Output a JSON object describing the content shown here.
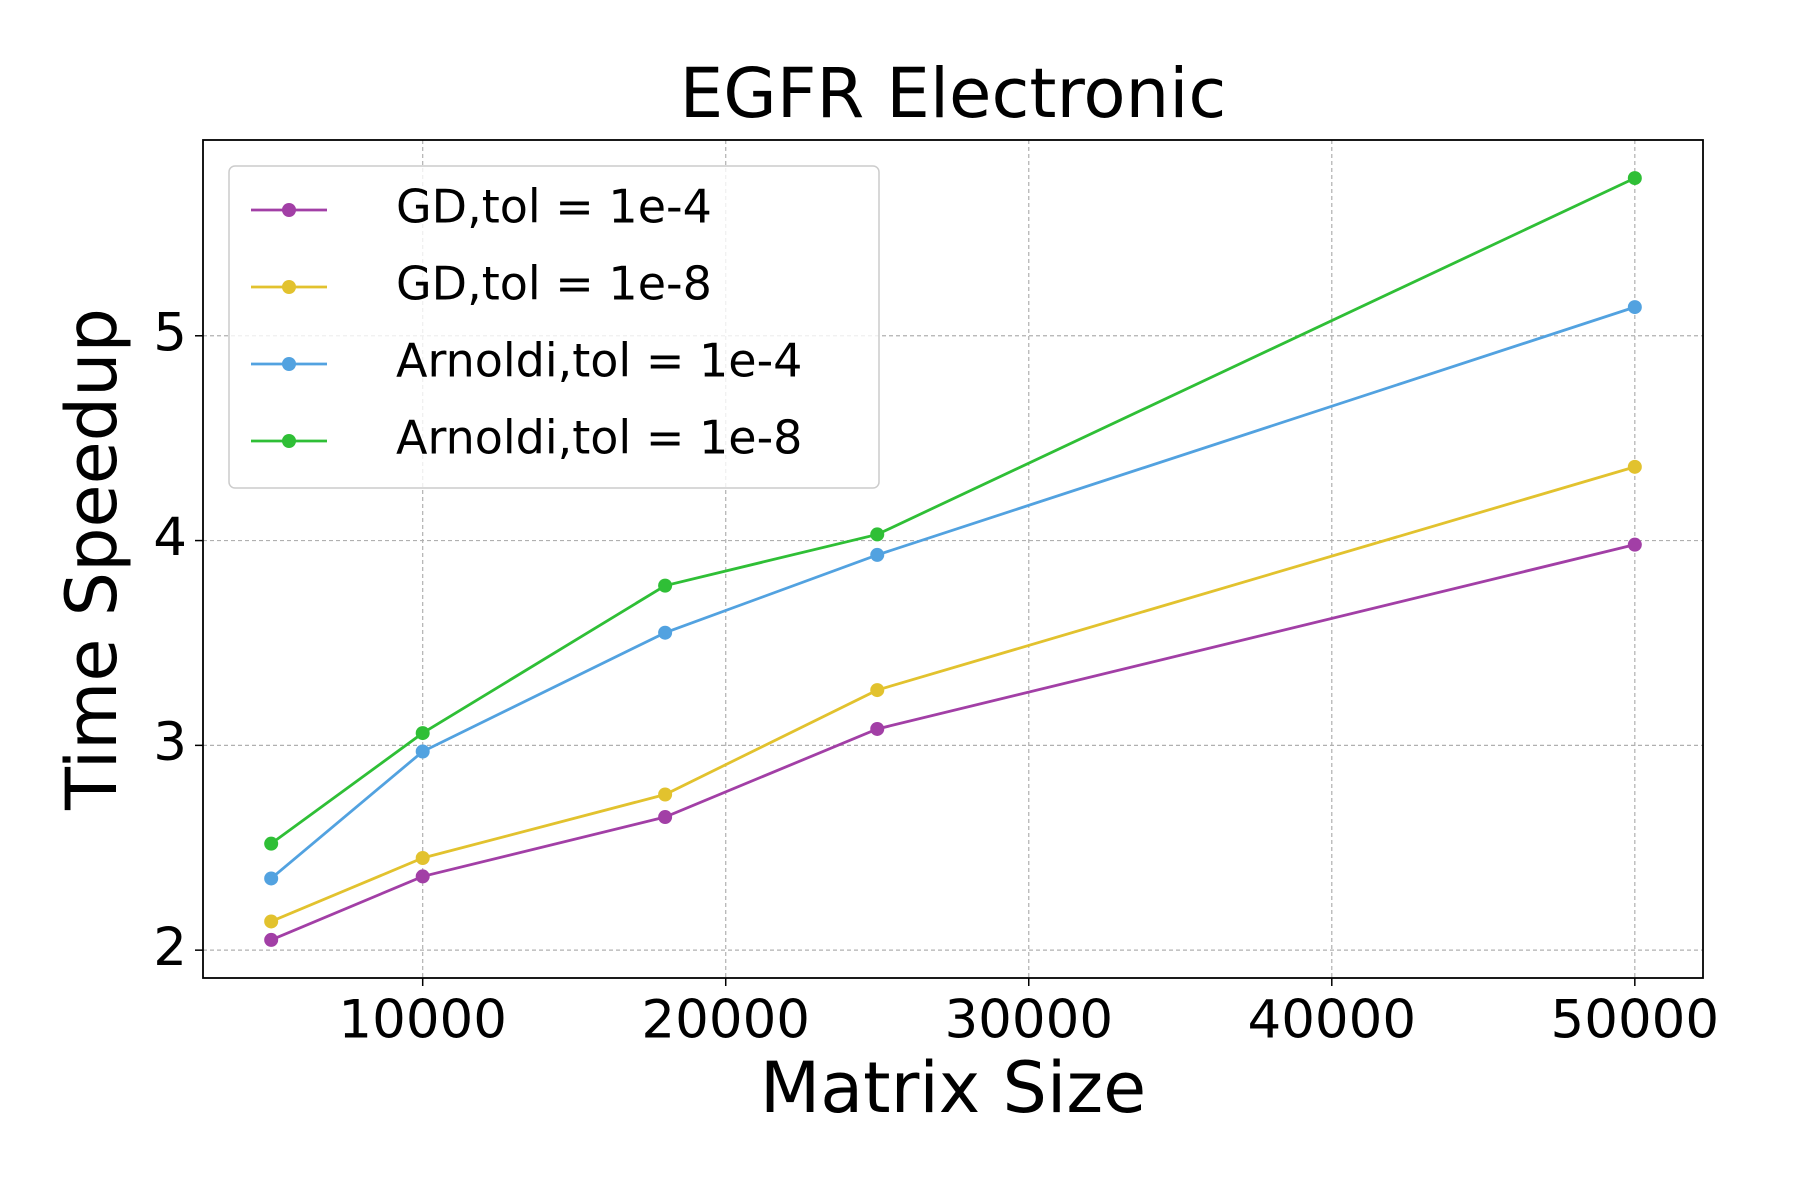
{
  "chart_data": {
    "type": "line",
    "title": "EGFR Electronic",
    "x_label": "Matrix Size",
    "y_label": "Time Speedup",
    "x": [
      5000,
      10000,
      18000,
      25000,
      50000
    ],
    "series": [
      {
        "name": "GD,tol = 1e-4",
        "color": "#a23fa6",
        "values": [
          2.05,
          2.36,
          2.65,
          3.08,
          3.98
        ]
      },
      {
        "name": "GD,tol = 1e-8",
        "color": "#e2c22e",
        "values": [
          2.14,
          2.45,
          2.76,
          3.27,
          4.36
        ]
      },
      {
        "name": "Arnoldi,tol = 1e-4",
        "color": "#52a2e0",
        "values": [
          2.35,
          2.97,
          3.55,
          3.93,
          5.14
        ]
      },
      {
        "name": "Arnoldi,tol = 1e-8",
        "color": "#2fbf36",
        "values": [
          2.52,
          3.06,
          3.78,
          4.03,
          5.77
        ]
      }
    ],
    "xlim": [
      2750,
      52250
    ],
    "xticks": [
      10000,
      20000,
      30000,
      40000,
      50000
    ],
    "ylim": [
      1.864,
      5.956
    ],
    "yticks": [
      2,
      3,
      4,
      5
    ],
    "grid": true,
    "legend": "upper left"
  }
}
